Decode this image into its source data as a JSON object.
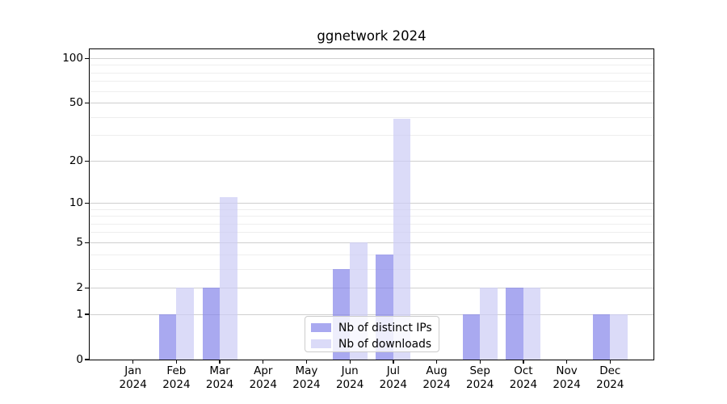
{
  "title": "ggnetwork 2024",
  "legend": {
    "items": [
      {
        "label": "Nb of distinct IPs",
        "color": "#a9a9f0"
      },
      {
        "label": "Nb of downloads",
        "color": "#dbdbf8"
      }
    ]
  },
  "chart_data": {
    "type": "bar",
    "title": "ggnetwork 2024",
    "categories": [
      "Jan",
      "Feb",
      "Mar",
      "Apr",
      "May",
      "Jun",
      "Jul",
      "Aug",
      "Sep",
      "Oct",
      "Nov",
      "Dec"
    ],
    "category_year": "2024",
    "series": [
      {
        "name": "Nb of distinct IPs",
        "color": "#a9a9f0",
        "values": [
          0,
          1,
          2,
          0,
          0,
          3,
          4,
          0,
          1,
          2,
          0,
          1
        ]
      },
      {
        "name": "Nb of downloads",
        "color": "#dbdbf8",
        "values": [
          0,
          2,
          11,
          0,
          0,
          5,
          39,
          0,
          2,
          2,
          0,
          1
        ]
      }
    ],
    "yscale": "log(value+1)",
    "ytick_labels": [
      "0",
      "1",
      "2",
      "5",
      "10",
      "20",
      "50",
      "100"
    ],
    "ytick_values": [
      0,
      1,
      2,
      5,
      10,
      20,
      50,
      100
    ],
    "minor_gridline_values": [
      3,
      4,
      6,
      7,
      8,
      9,
      30,
      40,
      60,
      70,
      80,
      90
    ],
    "ylim": [
      0,
      115
    ],
    "grid": true,
    "legend_position": "lower-center",
    "colors": {
      "grid_major": "#cfcfcf",
      "grid_minor": "#eeeeee"
    }
  }
}
